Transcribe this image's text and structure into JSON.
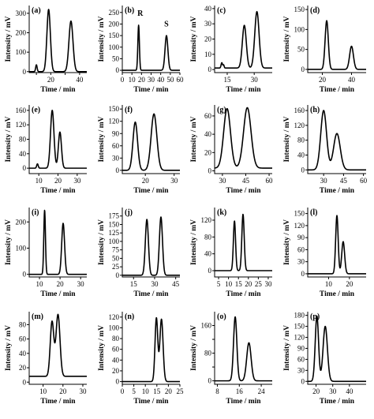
{
  "chart_data": [
    {
      "panel": "(a)",
      "type": "line",
      "xlabel": "Time / min",
      "ylabel": "Intensity / mV",
      "xlim": [
        5,
        45
      ],
      "ylim": [
        -5,
        340
      ],
      "xticks": [
        10,
        20,
        30,
        40
      ],
      "xtick_labels": [
        "",
        "20",
        "",
        "40"
      ],
      "yticks": [
        0,
        100,
        200,
        300
      ],
      "ytick_labels": [
        "0",
        "100",
        "200",
        "300"
      ],
      "baseline": 0,
      "peaks": [
        {
          "t": 10,
          "h": 35,
          "w": 0.5
        },
        {
          "t": 18.5,
          "h": 320,
          "w": 1.2
        },
        {
          "t": 34,
          "h": 260,
          "w": 1.4
        }
      ],
      "peak_labels": []
    },
    {
      "panel": "(b)",
      "type": "line",
      "xlabel": "Time / min",
      "ylabel": "Intensity / mV",
      "xlim": [
        0,
        60
      ],
      "ylim": [
        -10,
        280
      ],
      "xticks": [
        0,
        10,
        20,
        30,
        40,
        50,
        60
      ],
      "xtick_labels": [
        "0",
        "10",
        "20",
        "30",
        "40",
        "50",
        "60"
      ],
      "yticks": [
        0,
        50,
        100,
        150,
        200,
        250
      ],
      "ytick_labels": [
        "0",
        "50",
        "100",
        "150",
        "200",
        "250"
      ],
      "baseline": 0,
      "peaks": [
        {
          "t": 17,
          "h": 195,
          "w": 0.8
        },
        {
          "t": 46,
          "h": 150,
          "w": 1.5
        }
      ],
      "peak_labels": [
        {
          "text": "R",
          "x": 17,
          "y": 235
        },
        {
          "text": "S",
          "x": 46,
          "y": 190
        }
      ]
    },
    {
      "panel": "(c)",
      "type": "line",
      "xlabel": "Time / min",
      "ylabel": "Intensity / mV",
      "xlim": [
        8,
        40
      ],
      "ylim": [
        -2,
        42
      ],
      "xticks": [
        15,
        30
      ],
      "xtick_labels": [
        "15",
        "30"
      ],
      "yticks": [
        0,
        10,
        20,
        30,
        40
      ],
      "ytick_labels": [
        "0",
        "10",
        "20",
        "30",
        "40"
      ],
      "baseline": 1,
      "peaks": [
        {
          "t": 12,
          "h": 3.5,
          "w": 0.4
        },
        {
          "t": 13,
          "h": 2,
          "w": 0.3
        },
        {
          "t": 24.5,
          "h": 28,
          "w": 1.1
        },
        {
          "t": 31.5,
          "h": 37,
          "w": 1.2
        }
      ],
      "peak_labels": []
    },
    {
      "panel": "(d)",
      "type": "line",
      "xlabel": "Time / min",
      "ylabel": "Intensity / mV",
      "xlim": [
        10,
        50
      ],
      "ylim": [
        -8,
        160
      ],
      "xticks": [
        20,
        40
      ],
      "xtick_labels": [
        "20",
        "40"
      ],
      "yticks": [
        0,
        50,
        100,
        150
      ],
      "ytick_labels": [
        "0",
        "50",
        "100",
        "150"
      ],
      "baseline": 0,
      "peaks": [
        {
          "t": 23,
          "h": 122,
          "w": 1.1
        },
        {
          "t": 40,
          "h": 58,
          "w": 1.3
        }
      ],
      "peak_labels": []
    },
    {
      "panel": "(e)",
      "type": "line",
      "xlabel": "Time / min",
      "ylabel": "Intensity / mV",
      "xlim": [
        5,
        35
      ],
      "ylim": [
        -15,
        175
      ],
      "xticks": [
        10,
        20,
        30
      ],
      "xtick_labels": [
        "10",
        "20",
        "30"
      ],
      "yticks": [
        0,
        40,
        80,
        120,
        160
      ],
      "ytick_labels": [
        "0",
        "40",
        "80",
        "120",
        "160"
      ],
      "baseline": 0,
      "peaks": [
        {
          "t": 9.3,
          "h": 12,
          "w": 0.4
        },
        {
          "t": 17,
          "h": 160,
          "w": 0.9
        },
        {
          "t": 21,
          "h": 100,
          "w": 0.8
        }
      ],
      "peak_labels": []
    },
    {
      "panel": "(f)",
      "type": "line",
      "xlabel": "Time / min",
      "ylabel": "Intensity / mV",
      "xlim": [
        12,
        32
      ],
      "ylim": [
        -8,
        160
      ],
      "xticks": [
        20,
        30
      ],
      "xtick_labels": [
        "20",
        "30"
      ],
      "yticks": [
        0,
        30,
        60,
        90,
        120,
        150
      ],
      "ytick_labels": [
        "0",
        "30",
        "60",
        "90",
        "120",
        "150"
      ],
      "baseline": 0,
      "peaks": [
        {
          "t": 16.5,
          "h": 118,
          "w": 0.8
        },
        {
          "t": 23,
          "h": 138,
          "w": 1.0
        }
      ],
      "peak_labels": []
    },
    {
      "panel": "(g)",
      "type": "line",
      "xlabel": "Time / min",
      "ylabel": "Intensity / mV",
      "xlim": [
        25,
        62
      ],
      "ylim": [
        -3,
        72
      ],
      "xticks": [
        30,
        45,
        60
      ],
      "xtick_labels": [
        "30",
        "45",
        "60"
      ],
      "yticks": [
        0,
        20,
        40,
        60
      ],
      "ytick_labels": [
        "0",
        "20",
        "40",
        "60"
      ],
      "baseline": 3,
      "peaks": [
        {
          "t": 33,
          "h": 65,
          "w": 2.2
        },
        {
          "t": 46,
          "h": 66,
          "w": 2.4
        }
      ],
      "peak_labels": []
    },
    {
      "panel": "(h)",
      "type": "line",
      "xlabel": "Time / min",
      "ylabel": "Intensity / mV",
      "xlim": [
        18,
        62
      ],
      "ylim": [
        -10,
        175
      ],
      "xticks": [
        30,
        45,
        60
      ],
      "xtick_labels": [
        "30",
        "45",
        "60"
      ],
      "yticks": [
        0,
        40,
        80,
        120,
        160
      ],
      "ytick_labels": [
        "0",
        "40",
        "80",
        "120",
        "160"
      ],
      "baseline": 0,
      "peaks": [
        {
          "t": 30,
          "h": 160,
          "w": 2.2
        },
        {
          "t": 40,
          "h": 98,
          "w": 2.5
        }
      ],
      "peak_labels": []
    },
    {
      "panel": "(i)",
      "type": "line",
      "xlabel": "Time / min",
      "ylabel": "Intensity / mV",
      "xlim": [
        5,
        33
      ],
      "ylim": [
        -10,
        255
      ],
      "xticks": [
        10,
        20,
        30
      ],
      "xtick_labels": [
        "10",
        "20",
        "30"
      ],
      "yticks": [
        0,
        100,
        200
      ],
      "ytick_labels": [
        "0",
        "100",
        "200"
      ],
      "baseline": 0,
      "peaks": [
        {
          "t": 12.5,
          "h": 245,
          "w": 0.4
        },
        {
          "t": 21.5,
          "h": 195,
          "w": 0.7
        }
      ],
      "peak_labels": []
    },
    {
      "panel": "(j)",
      "type": "line",
      "xlabel": "Time / min",
      "ylabel": "Intensity / mV",
      "xlim": [
        7,
        48
      ],
      "ylim": [
        -5,
        200
      ],
      "xticks": [
        15,
        30,
        45
      ],
      "xtick_labels": [
        "15",
        "30",
        "45"
      ],
      "yticks": [
        0,
        25,
        50,
        75,
        100,
        125,
        150,
        175
      ],
      "ytick_labels": [
        "0",
        "25",
        "50",
        "75",
        "100",
        "125",
        "150",
        "175"
      ],
      "baseline": 0,
      "peaks": [
        {
          "t": 24.5,
          "h": 165,
          "w": 1.1
        },
        {
          "t": 34.5,
          "h": 172,
          "w": 1.1
        }
      ],
      "peak_labels": []
    },
    {
      "panel": "(k)",
      "type": "line",
      "xlabel": "Time / min",
      "ylabel": "Intensity / mV",
      "xlim": [
        3,
        32
      ],
      "ylim": [
        -15,
        150
      ],
      "xticks": [
        5,
        10,
        15,
        20,
        25,
        30
      ],
      "xtick_labels": [
        "5",
        "10",
        "15",
        "20",
        "25",
        "30"
      ],
      "yticks": [
        0,
        40,
        80,
        120
      ],
      "ytick_labels": [
        "0",
        "40",
        "80",
        "120"
      ],
      "baseline": 0,
      "peaks": [
        {
          "t": 13,
          "h": 118,
          "w": 0.55
        },
        {
          "t": 17.3,
          "h": 134,
          "w": 0.6
        }
      ],
      "peak_labels": []
    },
    {
      "panel": "(l)",
      "type": "line",
      "xlabel": "Time / min",
      "ylabel": "Intensity / mV",
      "xlim": [
        0,
        28
      ],
      "ylim": [
        -8,
        165
      ],
      "xticks": [
        10,
        20
      ],
      "xtick_labels": [
        "10",
        "20"
      ],
      "yticks": [
        0,
        30,
        60,
        90,
        120,
        150
      ],
      "ytick_labels": [
        "0",
        "30",
        "60",
        "90",
        "120",
        "150"
      ],
      "baseline": 0,
      "peaks": [
        {
          "t": 14,
          "h": 145,
          "w": 0.6
        },
        {
          "t": 17,
          "h": 80,
          "w": 0.7
        }
      ],
      "peak_labels": []
    },
    {
      "panel": "(m)",
      "type": "line",
      "xlabel": "Time / min",
      "ylabel": "Intensity / mV",
      "xlim": [
        3,
        32
      ],
      "ylim": [
        -3,
        98
      ],
      "xticks": [
        10,
        20,
        30
      ],
      "xtick_labels": [
        "10",
        "20",
        "30"
      ],
      "yticks": [
        0,
        20,
        40,
        60,
        80
      ],
      "ytick_labels": [
        "0",
        "20",
        "40",
        "60",
        "80"
      ],
      "baseline": 8,
      "peaks": [
        {
          "t": 14.5,
          "h": 76,
          "w": 0.9
        },
        {
          "t": 17.5,
          "h": 86,
          "w": 1.0
        }
      ],
      "peak_labels": []
    },
    {
      "panel": "(n)",
      "type": "line",
      "xlabel": "Time / min",
      "ylabel": "Intensity / mV",
      "xlim": [
        0,
        25
      ],
      "ylim": [
        -5,
        130
      ],
      "xticks": [
        0,
        5,
        10,
        15,
        20,
        25
      ],
      "xtick_labels": [
        "0",
        "5",
        "10",
        "15",
        "20",
        "25"
      ],
      "yticks": [
        0,
        20,
        40,
        60,
        80,
        100,
        120
      ],
      "ytick_labels": [
        "0",
        "20",
        "40",
        "60",
        "80",
        "100",
        "120"
      ],
      "baseline": 0,
      "peaks": [
        {
          "t": 14.8,
          "h": 118,
          "w": 0.6
        },
        {
          "t": 17,
          "h": 116,
          "w": 0.7
        }
      ],
      "peak_labels": []
    },
    {
      "panel": "(o)",
      "type": "line",
      "xlabel": "Time / min",
      "ylabel": "Intensity / mV",
      "xlim": [
        7,
        28
      ],
      "ylim": [
        -10,
        200
      ],
      "xticks": [
        8,
        16,
        24
      ],
      "xtick_labels": [
        "8",
        "16",
        "24"
      ],
      "yticks": [
        0,
        40,
        80,
        120,
        160
      ],
      "ytick_labels": [
        "0",
        "",
        "80",
        "",
        "160"
      ],
      "baseline": 0,
      "peaks": [
        {
          "t": 14.5,
          "h": 185,
          "w": 0.6
        },
        {
          "t": 19.5,
          "h": 110,
          "w": 0.8
        }
      ],
      "peak_labels": []
    },
    {
      "panel": "(p)",
      "type": "line",
      "xlabel": "Time / min",
      "ylabel": "Intensity / mV",
      "xlim": [
        15,
        50
      ],
      "ylim": [
        -8,
        190
      ],
      "xticks": [
        20,
        30,
        40
      ],
      "xtick_labels": [
        "20",
        "30",
        "40"
      ],
      "yticks": [
        0,
        30,
        60,
        90,
        120,
        150,
        180
      ],
      "ytick_labels": [
        "0",
        "30",
        "60",
        "90",
        "120",
        "150",
        "180"
      ],
      "baseline": 0,
      "peaks": [
        {
          "t": 20.5,
          "h": 178,
          "w": 1.0
        },
        {
          "t": 25.5,
          "h": 150,
          "w": 1.3
        }
      ],
      "peak_labels": []
    }
  ]
}
